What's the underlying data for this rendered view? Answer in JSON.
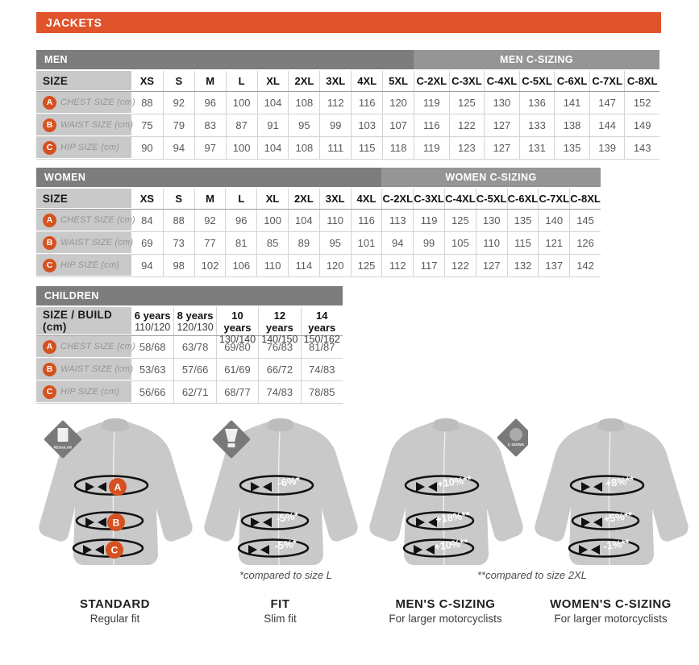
{
  "header": {
    "title": "JACKETS"
  },
  "colors": {
    "orange": "#E0532B",
    "marker_orange": "#D5511F",
    "group_bar_dark": "#7D7D7D",
    "group_bar_light": "#959595",
    "label_bg": "#C9C9C9",
    "value_text": "#595959",
    "jacket_gray": "#C9C9C9",
    "badge_gray": "#797979"
  },
  "tables": [
    {
      "id": "men",
      "group_left": "MEN",
      "group_right": "MEN C-SIZING",
      "size_header": "SIZE",
      "columns": [
        "XS",
        "S",
        "M",
        "L",
        "XL",
        "2XL",
        "3XL",
        "4XL",
        "5XL",
        "C-2XL",
        "C-3XL",
        "C-4XL",
        "C-5XL",
        "C-6XL",
        "C-7XL",
        "C-8XL"
      ],
      "rows": [
        {
          "marker": "A",
          "label": "CHEST SIZE (cm)",
          "values": [
            "88",
            "92",
            "96",
            "100",
            "104",
            "108",
            "112",
            "116",
            "120",
            "119",
            "125",
            "130",
            "136",
            "141",
            "147",
            "152"
          ]
        },
        {
          "marker": "B",
          "label": "WAIST SIZE (cm)",
          "values": [
            "75",
            "79",
            "83",
            "87",
            "91",
            "95",
            "99",
            "103",
            "107",
            "116",
            "122",
            "127",
            "133",
            "138",
            "144",
            "149"
          ]
        },
        {
          "marker": "C",
          "label": "HIP SIZE (cm)",
          "values": [
            "90",
            "94",
            "97",
            "100",
            "104",
            "108",
            "111",
            "115",
            "118",
            "119",
            "123",
            "127",
            "131",
            "135",
            "139",
            "143"
          ]
        }
      ]
    },
    {
      "id": "women",
      "group_left": "WOMEN",
      "group_right": "WOMEN C-SIZING",
      "size_header": "SIZE",
      "columns": [
        "XS",
        "S",
        "M",
        "L",
        "XL",
        "2XL",
        "3XL",
        "4XL",
        "C-2XL",
        "C-3XL",
        "C-4XL",
        "C-5XL",
        "C-6XL",
        "C-7XL",
        "C-8XL"
      ],
      "rows": [
        {
          "marker": "A",
          "label": "CHEST SIZE (cm)",
          "values": [
            "84",
            "88",
            "92",
            "96",
            "100",
            "104",
            "110",
            "116",
            "113",
            "119",
            "125",
            "130",
            "135",
            "140",
            "145"
          ]
        },
        {
          "marker": "B",
          "label": "WAIST SIZE (cm)",
          "values": [
            "69",
            "73",
            "77",
            "81",
            "85",
            "89",
            "95",
            "101",
            "94",
            "99",
            "105",
            "110",
            "115",
            "121",
            "126"
          ]
        },
        {
          "marker": "C",
          "label": "HIP SIZE (cm)",
          "values": [
            "94",
            "98",
            "102",
            "106",
            "110",
            "114",
            "120",
            "125",
            "112",
            "117",
            "122",
            "127",
            "132",
            "137",
            "142"
          ]
        }
      ]
    },
    {
      "id": "children",
      "group_left": "CHILDREN",
      "group_right": "",
      "size_header": "SIZE / BUILD (cm)",
      "columns": [
        {
          "line1": "6 years",
          "line2": "110/120"
        },
        {
          "line1": "8 years",
          "line2": "120/130"
        },
        {
          "line1": "10 years",
          "line2": "130/140"
        },
        {
          "line1": "12 years",
          "line2": "140/150"
        },
        {
          "line1": "14 years",
          "line2": "150/162"
        }
      ],
      "rows": [
        {
          "marker": "A",
          "label": "CHEST SIZE (cm)",
          "values": [
            "58/68",
            "63/78",
            "69/80",
            "76/83",
            "81/87"
          ]
        },
        {
          "marker": "B",
          "label": "WAIST SIZE (cm)",
          "values": [
            "53/63",
            "57/66",
            "61/69",
            "66/72",
            "74/83"
          ]
        },
        {
          "marker": "C",
          "label": "HIP SIZE (cm)",
          "values": [
            "56/66",
            "62/71",
            "68/77",
            "74/83",
            "78/85"
          ]
        }
      ]
    }
  ],
  "diagrams": [
    {
      "title": "STANDARD",
      "subtitle": "Regular fit",
      "badge": "REGULAR",
      "bands": [
        "A",
        "B",
        "C"
      ]
    },
    {
      "title": "FIT",
      "subtitle": "Slim fit",
      "badge": "",
      "bands": [
        "-6%*",
        "-5%*",
        "-5%*"
      ]
    },
    {
      "title": "MEN'S C-SIZING",
      "subtitle": "For larger motorcyclists",
      "badge": "C-SIZING",
      "bands": [
        "+10%**",
        "+18%**",
        "+10%**"
      ]
    },
    {
      "title": "WOMEN'S C-SIZING",
      "subtitle": "For larger motorcyclists",
      "badge": "",
      "bands": [
        "+8%**",
        "+5%**",
        "-1%**"
      ]
    }
  ],
  "notes": [
    {
      "text": "*compared to size L"
    },
    {
      "text": "**compared to size 2XL"
    }
  ]
}
